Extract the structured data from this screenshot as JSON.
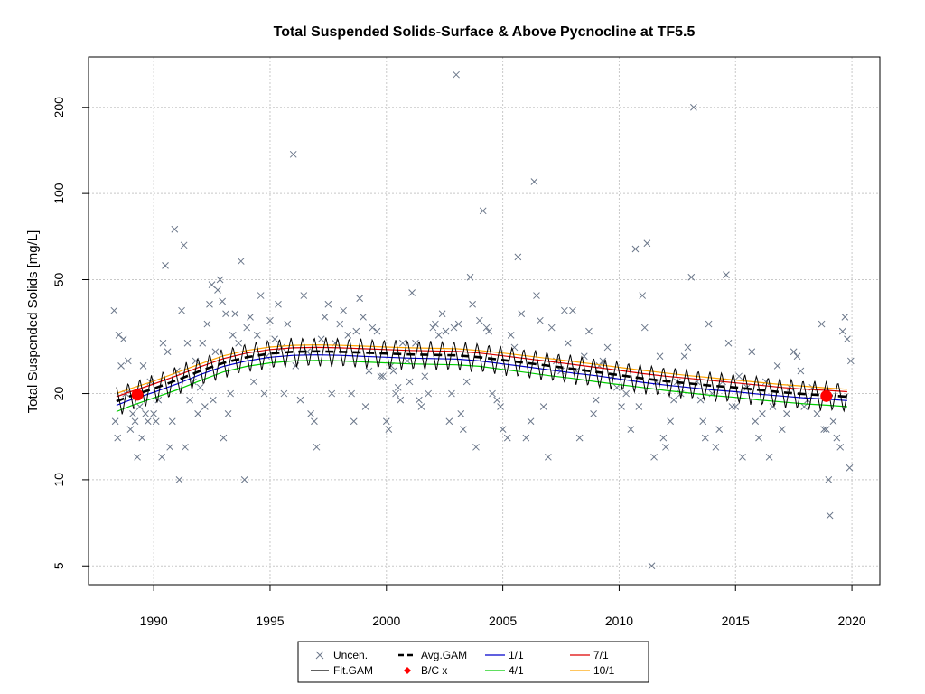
{
  "chart_data": {
    "type": "scatter",
    "title": "Total Suspended Solids-Surface & Above Pycnocline at TF5.5",
    "ylabel": "Total Suspended Solids [mg/L]",
    "xlabel": "",
    "y_scale": "log",
    "xlim": [
      1987.2,
      2021.2
    ],
    "ylim": [
      4.3,
      300
    ],
    "x_ticks": [
      "1990",
      "1995",
      "2000",
      "2005",
      "2010",
      "2015",
      "2020"
    ],
    "y_ticks": [
      "5",
      "10",
      "20",
      "50",
      "100",
      "200"
    ],
    "grid": true,
    "legend_position": "bottom-center",
    "legend": [
      {
        "label": "Uncen.",
        "kind": "x-marker",
        "color": "#6b778a"
      },
      {
        "label": "Fit.GAM",
        "kind": "line",
        "color": "#000000"
      },
      {
        "label": "Avg.GAM",
        "kind": "dashed-line",
        "color": "#000000"
      },
      {
        "label": "B/C x",
        "kind": "dot",
        "color": "#ff0000"
      },
      {
        "label": "1/1",
        "kind": "line",
        "color": "#0000cc"
      },
      {
        "label": "4/1",
        "kind": "line",
        "color": "#00cc00"
      },
      {
        "label": "7/1",
        "kind": "line",
        "color": "#dd0000"
      },
      {
        "label": "10/1",
        "kind": "line",
        "color": "#ffa500"
      }
    ],
    "colors": {
      "points": "#6b778a",
      "fit": "#000000",
      "avg": "#000000",
      "bc": "#ff0000",
      "jan1": "#0000cc",
      "apr1": "#00cc00",
      "jul1": "#dd0000",
      "oct1": "#ffa500",
      "grid": "#c8c8c8"
    },
    "series": [
      {
        "name": "Avg.GAM",
        "x": [
          1988.4,
          1989.0,
          1990.0,
          1991.0,
          1992.0,
          1993.0,
          1994.0,
          1995.0,
          1996.0,
          1997.0,
          1998.0,
          1999.0,
          2000.0,
          2001.0,
          2002.0,
          2003.0,
          2004.0,
          2005.0,
          2006.0,
          2007.0,
          2008.0,
          2009.0,
          2010.0,
          2011.0,
          2012.0,
          2013.0,
          2014.0,
          2015.0,
          2016.0,
          2017.0,
          2018.0,
          2019.0,
          2019.8
        ],
        "y": [
          18.8,
          19.6,
          20.8,
          22.3,
          24.0,
          25.6,
          26.8,
          27.6,
          28.0,
          28.1,
          28.0,
          27.8,
          27.6,
          27.4,
          27.3,
          27.2,
          26.8,
          26.2,
          25.6,
          25.0,
          24.4,
          23.8,
          23.2,
          22.6,
          22.1,
          21.7,
          21.3,
          21.0,
          20.6,
          20.2,
          19.9,
          19.7,
          19.5
        ]
      },
      {
        "name": "1/1",
        "x": [
          1988.4,
          1989.0,
          1990.0,
          1991.0,
          1992.0,
          1993.0,
          1994.0,
          1995.0,
          1996.0,
          1997.0,
          1998.0,
          1999.0,
          2000.0,
          2001.0,
          2002.0,
          2003.0,
          2004.0,
          2005.0,
          2006.0,
          2007.0,
          2008.0,
          2009.0,
          2010.0,
          2011.0,
          2012.0,
          2013.0,
          2014.0,
          2015.0,
          2016.0,
          2017.0,
          2018.0,
          2019.0,
          2019.8
        ],
        "y": [
          18.2,
          19.0,
          20.2,
          21.6,
          23.3,
          24.9,
          26.0,
          26.8,
          27.2,
          27.3,
          27.2,
          27.0,
          26.8,
          26.6,
          26.5,
          26.4,
          26.0,
          25.4,
          24.8,
          24.2,
          23.6,
          23.1,
          22.5,
          21.9,
          21.4,
          21.0,
          20.6,
          20.3,
          19.9,
          19.6,
          19.3,
          19.1,
          18.9
        ]
      },
      {
        "name": "4/1",
        "x": [
          1988.4,
          1989.0,
          1990.0,
          1991.0,
          1992.0,
          1993.0,
          1994.0,
          1995.0,
          1996.0,
          1997.0,
          1998.0,
          1999.0,
          2000.0,
          2001.0,
          2002.0,
          2003.0,
          2004.0,
          2005.0,
          2006.0,
          2007.0,
          2008.0,
          2009.0,
          2010.0,
          2011.0,
          2012.0,
          2013.0,
          2014.0,
          2015.0,
          2016.0,
          2017.0,
          2018.0,
          2019.0,
          2019.8
        ],
        "y": [
          17.3,
          18.1,
          19.3,
          20.6,
          22.2,
          23.8,
          24.9,
          25.6,
          26.0,
          26.1,
          26.0,
          25.8,
          25.6,
          25.4,
          25.3,
          25.2,
          24.9,
          24.3,
          23.7,
          23.1,
          22.6,
          22.0,
          21.5,
          21.0,
          20.5,
          20.1,
          19.7,
          19.4,
          19.0,
          18.7,
          18.4,
          18.2,
          18.0
        ]
      },
      {
        "name": "7/1",
        "x": [
          1988.4,
          1989.0,
          1990.0,
          1991.0,
          1992.0,
          1993.0,
          1994.0,
          1995.0,
          1996.0,
          1997.0,
          1998.0,
          1999.0,
          2000.0,
          2001.0,
          2002.0,
          2003.0,
          2004.0,
          2005.0,
          2006.0,
          2007.0,
          2008.0,
          2009.0,
          2010.0,
          2011.0,
          2012.0,
          2013.0,
          2014.0,
          2015.0,
          2016.0,
          2017.0,
          2018.0,
          2019.0,
          2019.8
        ],
        "y": [
          19.5,
          20.3,
          21.6,
          23.1,
          24.8,
          26.5,
          27.7,
          28.5,
          28.9,
          29.0,
          28.9,
          28.7,
          28.5,
          28.3,
          28.2,
          28.1,
          27.7,
          27.1,
          26.5,
          25.9,
          25.3,
          24.7,
          24.1,
          23.5,
          23.0,
          22.6,
          22.2,
          21.8,
          21.4,
          21.0,
          20.7,
          20.5,
          20.3
        ]
      },
      {
        "name": "10/1",
        "x": [
          1988.4,
          1989.0,
          1990.0,
          1991.0,
          1992.0,
          1993.0,
          1994.0,
          1995.0,
          1996.0,
          1997.0,
          1998.0,
          1999.0,
          2000.0,
          2001.0,
          2002.0,
          2003.0,
          2004.0,
          2005.0,
          2006.0,
          2007.0,
          2008.0,
          2009.0,
          2010.0,
          2011.0,
          2012.0,
          2013.0,
          2014.0,
          2015.0,
          2016.0,
          2017.0,
          2018.0,
          2019.0,
          2019.8
        ],
        "y": [
          20.0,
          20.8,
          22.1,
          23.7,
          25.4,
          27.1,
          28.3,
          29.1,
          29.5,
          29.6,
          29.5,
          29.3,
          29.1,
          28.9,
          28.8,
          28.7,
          28.3,
          27.7,
          27.1,
          26.5,
          25.9,
          25.3,
          24.7,
          24.1,
          23.6,
          23.1,
          22.7,
          22.3,
          21.9,
          21.5,
          21.2,
          20.9,
          20.7
        ]
      }
    ],
    "fit_gam": {
      "name": "Fit.GAM",
      "center": "Avg.GAM",
      "seasonal_amplitude_fraction": 0.12,
      "period_years": 0.5
    },
    "bc_points": [
      {
        "x": 1989.3,
        "y": 19.8
      },
      {
        "x": 2018.9,
        "y": 19.6
      }
    ],
    "points": [
      [
        1988.3,
        39
      ],
      [
        1988.35,
        16
      ],
      [
        1988.45,
        14
      ],
      [
        1988.5,
        32
      ],
      [
        1988.6,
        25
      ],
      [
        1988.7,
        31
      ],
      [
        1988.8,
        20
      ],
      [
        1988.9,
        26
      ],
      [
        1989.0,
        15
      ],
      [
        1989.1,
        17
      ],
      [
        1989.2,
        16
      ],
      [
        1989.3,
        12
      ],
      [
        1989.4,
        18
      ],
      [
        1989.5,
        14
      ],
      [
        1989.55,
        25
      ],
      [
        1989.65,
        17
      ],
      [
        1989.75,
        16
      ],
      [
        1989.85,
        22
      ],
      [
        1990.0,
        17
      ],
      [
        1990.1,
        16
      ],
      [
        1990.2,
        19
      ],
      [
        1990.35,
        12
      ],
      [
        1990.4,
        30
      ],
      [
        1990.5,
        56
      ],
      [
        1990.6,
        28
      ],
      [
        1990.7,
        13
      ],
      [
        1990.8,
        16
      ],
      [
        1990.9,
        75
      ],
      [
        1991.0,
        24
      ],
      [
        1991.1,
        10
      ],
      [
        1991.2,
        39
      ],
      [
        1991.3,
        66
      ],
      [
        1991.35,
        13
      ],
      [
        1991.45,
        30
      ],
      [
        1991.55,
        19
      ],
      [
        1991.7,
        22
      ],
      [
        1991.8,
        26
      ],
      [
        1991.9,
        17
      ],
      [
        1992.0,
        21
      ],
      [
        1992.1,
        30
      ],
      [
        1992.2,
        18
      ],
      [
        1992.3,
        35
      ],
      [
        1992.4,
        41
      ],
      [
        1992.5,
        48
      ],
      [
        1992.55,
        19
      ],
      [
        1992.65,
        28
      ],
      [
        1992.75,
        46
      ],
      [
        1992.85,
        50
      ],
      [
        1992.95,
        42
      ],
      [
        1993.0,
        14
      ],
      [
        1993.1,
        38
      ],
      [
        1993.2,
        17
      ],
      [
        1993.3,
        20
      ],
      [
        1993.4,
        32
      ],
      [
        1993.5,
        38
      ],
      [
        1993.65,
        30
      ],
      [
        1993.75,
        58
      ],
      [
        1993.9,
        10
      ],
      [
        1994.0,
        34
      ],
      [
        1994.15,
        37
      ],
      [
        1994.3,
        22
      ],
      [
        1994.45,
        32
      ],
      [
        1994.6,
        44
      ],
      [
        1994.75,
        20
      ],
      [
        1994.85,
        27
      ],
      [
        1995.0,
        36
      ],
      [
        1995.2,
        31
      ],
      [
        1995.35,
        41
      ],
      [
        1995.5,
        29
      ],
      [
        1995.6,
        20
      ],
      [
        1995.75,
        35
      ],
      [
        1996.0,
        137
      ],
      [
        1996.1,
        25
      ],
      [
        1996.3,
        19
      ],
      [
        1996.45,
        44
      ],
      [
        1996.6,
        28
      ],
      [
        1996.75,
        17
      ],
      [
        1996.9,
        16
      ],
      [
        1997.0,
        13
      ],
      [
        1997.2,
        31
      ],
      [
        1997.35,
        37
      ],
      [
        1997.5,
        41
      ],
      [
        1997.65,
        20
      ],
      [
        1997.8,
        30
      ],
      [
        1998.0,
        35
      ],
      [
        1998.15,
        39
      ],
      [
        1998.35,
        32
      ],
      [
        1998.5,
        20
      ],
      [
        1998.6,
        16
      ],
      [
        1998.7,
        33
      ],
      [
        1998.85,
        43
      ],
      [
        1999.0,
        37
      ],
      [
        1999.1,
        18
      ],
      [
        1999.25,
        24
      ],
      [
        1999.4,
        34
      ],
      [
        1999.6,
        33
      ],
      [
        1999.75,
        23
      ],
      [
        1999.85,
        23
      ],
      [
        2000.0,
        16
      ],
      [
        2000.1,
        15
      ],
      [
        2000.2,
        25
      ],
      [
        2000.3,
        24
      ],
      [
        2000.4,
        20
      ],
      [
        2000.5,
        21
      ],
      [
        2000.6,
        19
      ],
      [
        2000.7,
        30
      ],
      [
        2000.9,
        26
      ],
      [
        2001.0,
        22
      ],
      [
        2001.1,
        45
      ],
      [
        2001.25,
        30
      ],
      [
        2001.4,
        19
      ],
      [
        2001.5,
        18
      ],
      [
        2001.65,
        23
      ],
      [
        2001.8,
        20
      ],
      [
        2002.0,
        34
      ],
      [
        2002.1,
        35
      ],
      [
        2002.25,
        32
      ],
      [
        2002.4,
        38
      ],
      [
        2002.55,
        33
      ],
      [
        2002.7,
        16
      ],
      [
        2002.8,
        20
      ],
      [
        2002.9,
        34
      ],
      [
        2003.0,
        260
      ],
      [
        2003.1,
        35
      ],
      [
        2003.2,
        17
      ],
      [
        2003.3,
        15
      ],
      [
        2003.45,
        22
      ],
      [
        2003.6,
        51
      ],
      [
        2003.7,
        41
      ],
      [
        2003.85,
        13
      ],
      [
        2004.0,
        36
      ],
      [
        2004.15,
        87
      ],
      [
        2004.3,
        34
      ],
      [
        2004.4,
        33
      ],
      [
        2004.55,
        20
      ],
      [
        2004.75,
        19
      ],
      [
        2004.9,
        18
      ],
      [
        2005.0,
        15
      ],
      [
        2005.2,
        14
      ],
      [
        2005.35,
        32
      ],
      [
        2005.5,
        29
      ],
      [
        2005.65,
        60
      ],
      [
        2005.8,
        38
      ],
      [
        2006.0,
        14
      ],
      [
        2006.2,
        16
      ],
      [
        2006.35,
        110
      ],
      [
        2006.45,
        44
      ],
      [
        2006.6,
        36
      ],
      [
        2006.75,
        18
      ],
      [
        2006.95,
        12
      ],
      [
        2007.1,
        34
      ],
      [
        2007.3,
        26
      ],
      [
        2007.5,
        24
      ],
      [
        2007.65,
        39
      ],
      [
        2007.8,
        30
      ],
      [
        2008.0,
        39
      ],
      [
        2008.15,
        24
      ],
      [
        2008.3,
        14
      ],
      [
        2008.5,
        27
      ],
      [
        2008.7,
        33
      ],
      [
        2008.9,
        17
      ],
      [
        2009.0,
        19
      ],
      [
        2009.15,
        25
      ],
      [
        2009.3,
        26
      ],
      [
        2009.5,
        29
      ],
      [
        2009.7,
        23
      ],
      [
        2009.9,
        21
      ],
      [
        2010.1,
        18
      ],
      [
        2010.3,
        20
      ],
      [
        2010.5,
        15
      ],
      [
        2010.7,
        64
      ],
      [
        2010.85,
        18
      ],
      [
        2011.0,
        44
      ],
      [
        2011.1,
        34
      ],
      [
        2011.2,
        67
      ],
      [
        2011.4,
        5
      ],
      [
        2011.5,
        12
      ],
      [
        2011.6,
        22
      ],
      [
        2011.75,
        27
      ],
      [
        2011.9,
        14
      ],
      [
        2012.0,
        13
      ],
      [
        2012.2,
        16
      ],
      [
        2012.35,
        19
      ],
      [
        2012.5,
        22
      ],
      [
        2012.65,
        20
      ],
      [
        2012.8,
        27
      ],
      [
        2012.95,
        29
      ],
      [
        2013.1,
        51
      ],
      [
        2013.2,
        200
      ],
      [
        2013.35,
        22
      ],
      [
        2013.5,
        19
      ],
      [
        2013.6,
        16
      ],
      [
        2013.7,
        14
      ],
      [
        2013.85,
        35
      ],
      [
        2014.0,
        20
      ],
      [
        2014.15,
        13
      ],
      [
        2014.3,
        15
      ],
      [
        2014.45,
        22
      ],
      [
        2014.6,
        52
      ],
      [
        2014.7,
        30
      ],
      [
        2014.85,
        18
      ],
      [
        2015.0,
        18
      ],
      [
        2015.15,
        23
      ],
      [
        2015.3,
        12
      ],
      [
        2015.5,
        21
      ],
      [
        2015.7,
        28
      ],
      [
        2015.85,
        16
      ],
      [
        2016.0,
        14
      ],
      [
        2016.15,
        17
      ],
      [
        2016.3,
        22
      ],
      [
        2016.45,
        12
      ],
      [
        2016.6,
        18
      ],
      [
        2016.8,
        25
      ],
      [
        2017.0,
        15
      ],
      [
        2017.2,
        17
      ],
      [
        2017.35,
        21
      ],
      [
        2017.5,
        28
      ],
      [
        2017.65,
        27
      ],
      [
        2017.8,
        24
      ],
      [
        2017.95,
        18
      ],
      [
        2018.1,
        19
      ],
      [
        2018.3,
        21
      ],
      [
        2018.5,
        17
      ],
      [
        2018.7,
        35
      ],
      [
        2018.8,
        15
      ],
      [
        2018.9,
        15
      ],
      [
        2019.0,
        10
      ],
      [
        2019.05,
        7.5
      ],
      [
        2019.2,
        16
      ],
      [
        2019.35,
        14
      ],
      [
        2019.5,
        13
      ],
      [
        2019.6,
        33
      ],
      [
        2019.7,
        37
      ],
      [
        2019.8,
        31
      ],
      [
        2019.9,
        11
      ],
      [
        2019.95,
        26
      ]
    ]
  }
}
